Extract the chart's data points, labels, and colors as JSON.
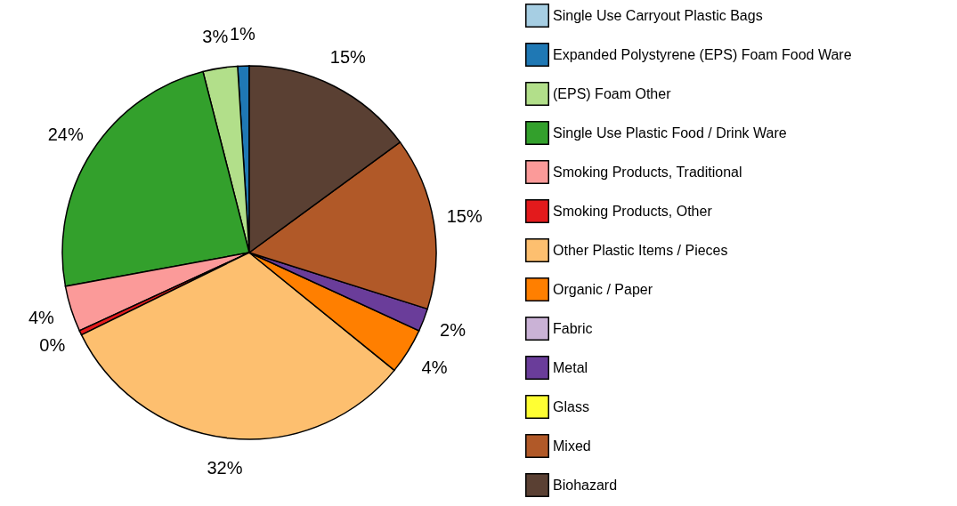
{
  "chart_data": {
    "type": "pie",
    "categories": [
      "Single Use Carryout Plastic Bags",
      "Expanded Polystyrene (EPS) Foam Food Ware",
      "(EPS) Foam Other",
      "Single Use Plastic Food / Drink Ware",
      "Smoking Products, Traditional",
      "Smoking Products, Other",
      "Other Plastic Items / Pieces",
      "Organic / Paper",
      "Fabric",
      "Metal",
      "Glass",
      "Mixed",
      "Biohazard"
    ],
    "values": [
      0,
      1,
      3,
      24,
      4,
      0.4,
      32,
      4,
      0,
      2,
      0,
      15,
      15
    ],
    "value_labels": [
      null,
      "1%",
      "3%",
      "24%",
      "4%",
      "0%",
      "32%",
      "4%",
      null,
      "2%",
      null,
      "15%",
      "15%"
    ],
    "colors": [
      "#a6cee3",
      "#1f78b4",
      "#b2df8a",
      "#33a02c",
      "#fb9a99",
      "#e31a1c",
      "#fdbf6f",
      "#ff7f00",
      "#cab2d6",
      "#6a3d9a",
      "#ffff33",
      "#b15928",
      "#5a4033"
    ],
    "legend": "right"
  }
}
